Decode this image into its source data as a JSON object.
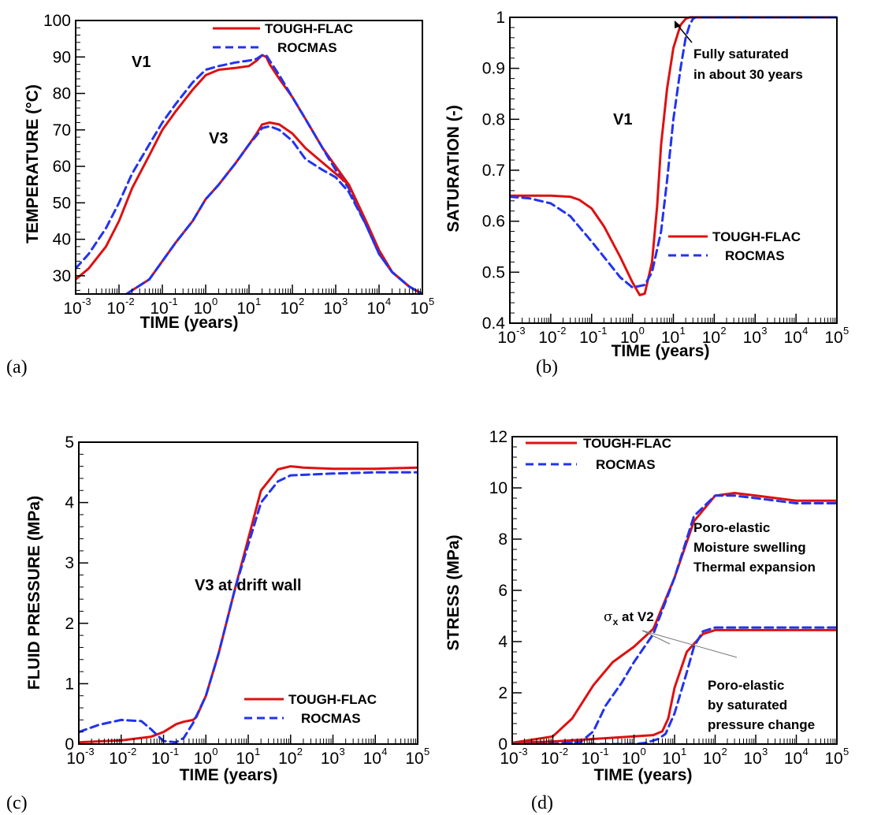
{
  "colors": {
    "tough": "#dd1111",
    "rocmas": "#2233ee",
    "axis": "#000000"
  },
  "chart_data": [
    {
      "type": "line",
      "panel_label": "(a)",
      "xlabel": "TIME (years)",
      "ylabel": "TEMPERATURE (°C)",
      "x_scale": "log",
      "xlim": [
        0.001,
        100000
      ],
      "ylim": [
        25,
        100
      ],
      "yticks": [
        30,
        40,
        50,
        60,
        70,
        80,
        90,
        100
      ],
      "legend": {
        "placement": "top-right",
        "entries": [
          "TOUGH-FLAC",
          "ROCMAS"
        ]
      },
      "annotations": [
        "V1",
        "V3"
      ],
      "series": [
        {
          "name": "TOUGH-FLAC",
          "group": "V1",
          "style": "solid",
          "x": [
            0.001,
            0.002,
            0.005,
            0.01,
            0.02,
            0.05,
            0.1,
            0.2,
            0.5,
            1,
            2,
            5,
            10,
            15,
            20,
            25,
            30,
            50,
            100,
            200,
            500,
            1000,
            2000,
            5000,
            10000,
            20000,
            50000,
            100000
          ],
          "y": [
            29,
            32,
            38,
            45,
            54,
            63,
            70,
            75,
            81,
            85,
            86.5,
            87,
            87.5,
            89,
            90.5,
            90,
            88,
            84,
            79,
            73,
            65,
            60,
            55,
            45,
            37,
            31,
            27,
            25
          ]
        },
        {
          "name": "ROCMAS",
          "group": "V1",
          "style": "dashed",
          "x": [
            0.001,
            0.002,
            0.005,
            0.01,
            0.02,
            0.05,
            0.1,
            0.2,
            0.5,
            1,
            2,
            5,
            10,
            15,
            20,
            25,
            30,
            50,
            100,
            200,
            500,
            1000,
            2000,
            5000,
            10000,
            20000,
            50000,
            100000
          ],
          "y": [
            32,
            36,
            43,
            50,
            58,
            66,
            72,
            77,
            83,
            86.5,
            87.5,
            88.5,
            89,
            89.5,
            90.5,
            90.5,
            89,
            85,
            79,
            73,
            65,
            59,
            54,
            44,
            36,
            31,
            27,
            25
          ]
        },
        {
          "name": "TOUGH-FLAC",
          "group": "V3",
          "style": "solid",
          "x": [
            0.015,
            0.02,
            0.05,
            0.1,
            0.2,
            0.5,
            1,
            2,
            5,
            10,
            15,
            20,
            30,
            50,
            100,
            200,
            500,
            1000,
            2000,
            5000,
            10000,
            20000,
            50000,
            100000
          ],
          "y": [
            25,
            26,
            29,
            34,
            39,
            45,
            51,
            55,
            61,
            66,
            69,
            71.5,
            72,
            71.5,
            69,
            65,
            61,
            58,
            55,
            45,
            37,
            31,
            27,
            25
          ]
        },
        {
          "name": "ROCMAS",
          "group": "V3",
          "style": "dashed",
          "x": [
            0.015,
            0.02,
            0.05,
            0.1,
            0.2,
            0.5,
            1,
            2,
            5,
            10,
            15,
            20,
            30,
            50,
            100,
            200,
            500,
            1000,
            2000,
            5000,
            10000,
            20000,
            50000,
            100000
          ],
          "y": [
            25,
            26,
            29,
            34,
            39,
            45,
            51,
            55,
            61,
            66,
            68.5,
            70.5,
            71,
            70,
            67,
            62,
            59,
            57,
            53,
            44,
            36,
            31,
            27,
            25
          ]
        }
      ]
    },
    {
      "type": "line",
      "panel_label": "(b)",
      "xlabel": "TIME (years)",
      "ylabel": "SATURATION (-)",
      "x_scale": "log",
      "xlim": [
        0.001,
        100000
      ],
      "ylim": [
        0.4,
        1.0
      ],
      "yticks": [
        0.4,
        0.5,
        0.6,
        0.7,
        0.8,
        0.9,
        1
      ],
      "ytick_labels": [
        "0.4",
        "0.5",
        "0.6",
        "0.7",
        "0.8",
        "0.9",
        "1"
      ],
      "legend": {
        "placement": "lower-right",
        "entries": [
          "TOUGH-FLAC",
          "ROCMAS"
        ]
      },
      "annotations": [
        "V1",
        "Fully saturated",
        "in about 30 years"
      ],
      "series": [
        {
          "name": "TOUGH-FLAC",
          "style": "solid",
          "x": [
            0.001,
            0.01,
            0.03,
            0.05,
            0.1,
            0.2,
            0.5,
            1,
            1.5,
            2,
            3,
            4,
            5,
            7,
            10,
            15,
            20,
            25,
            30,
            100000
          ],
          "y": [
            0.65,
            0.65,
            0.648,
            0.642,
            0.625,
            0.59,
            0.53,
            0.48,
            0.455,
            0.458,
            0.52,
            0.63,
            0.75,
            0.86,
            0.94,
            0.985,
            0.997,
            1.0,
            1.0,
            1.0
          ]
        },
        {
          "name": "ROCMAS",
          "style": "dashed",
          "x": [
            0.001,
            0.003,
            0.01,
            0.03,
            0.1,
            0.2,
            0.5,
            1,
            2,
            3,
            5,
            7,
            10,
            15,
            20,
            25,
            30,
            35,
            100000
          ],
          "y": [
            0.648,
            0.645,
            0.635,
            0.61,
            0.56,
            0.53,
            0.49,
            0.47,
            0.475,
            0.5,
            0.58,
            0.68,
            0.8,
            0.9,
            0.96,
            0.985,
            0.997,
            1.0,
            1.0
          ]
        }
      ]
    },
    {
      "type": "line",
      "panel_label": "(c)",
      "xlabel": "TIME (years)",
      "ylabel": "FLUID PRESSURE (MPa)",
      "x_scale": "log",
      "xlim": [
        0.001,
        100000
      ],
      "ylim": [
        0,
        5
      ],
      "yticks": [
        0,
        1,
        2,
        3,
        4,
        5
      ],
      "legend": {
        "placement": "lower-right",
        "entries": [
          "TOUGH-FLAC",
          "ROCMAS"
        ]
      },
      "annotations": [
        "V3 at drift wall"
      ],
      "series": [
        {
          "name": "TOUGH-FLAC",
          "style": "solid",
          "x": [
            0.001,
            0.01,
            0.05,
            0.1,
            0.2,
            0.3,
            0.5,
            0.6,
            1,
            2,
            5,
            10,
            20,
            50,
            100,
            200,
            1000,
            10000,
            100000
          ],
          "y": [
            0.03,
            0.06,
            0.12,
            0.2,
            0.33,
            0.37,
            0.4,
            0.45,
            0.8,
            1.5,
            2.6,
            3.4,
            4.2,
            4.55,
            4.6,
            4.58,
            4.56,
            4.56,
            4.58
          ]
        },
        {
          "name": "ROCMAS",
          "style": "dashed",
          "x": [
            0.001,
            0.003,
            0.01,
            0.03,
            0.05,
            0.1,
            0.2,
            0.3,
            0.5,
            1,
            2,
            5,
            10,
            20,
            50,
            100,
            1000,
            10000,
            100000
          ],
          "y": [
            0.2,
            0.32,
            0.4,
            0.38,
            0.25,
            0.05,
            0.03,
            0.1,
            0.35,
            0.8,
            1.5,
            2.6,
            3.3,
            4.0,
            4.35,
            4.45,
            4.48,
            4.5,
            4.5
          ]
        }
      ]
    },
    {
      "type": "line",
      "panel_label": "(d)",
      "xlabel": "TIME (years)",
      "ylabel": "STRESS (MPa)",
      "x_scale": "log",
      "xlim": [
        0.001,
        100000
      ],
      "ylim": [
        0,
        12
      ],
      "yticks": [
        0,
        2,
        4,
        6,
        8,
        10,
        12
      ],
      "legend": {
        "placement": "top-left",
        "entries": [
          "TOUGH-FLAC",
          "ROCMAS"
        ]
      },
      "annotations": [
        "Poro-elastic",
        "Moisture swelling",
        "Thermal expansion",
        "σx at V2",
        "Poro-elastic",
        "by saturated",
        "pressure change"
      ],
      "series": [
        {
          "name": "TOUGH-FLAC",
          "group": "upper",
          "style": "solid",
          "x": [
            0.001,
            0.01,
            0.03,
            0.1,
            0.3,
            1,
            3,
            10,
            30,
            100,
            300,
            1000,
            10000,
            100000
          ],
          "y": [
            0.05,
            0.3,
            1.0,
            2.3,
            3.2,
            3.8,
            4.5,
            6.5,
            8.7,
            9.7,
            9.8,
            9.7,
            9.5,
            9.5
          ]
        },
        {
          "name": "ROCMAS",
          "group": "upper",
          "style": "dashed",
          "x": [
            0.001,
            0.01,
            0.05,
            0.1,
            0.2,
            0.5,
            1,
            3,
            10,
            30,
            100,
            300,
            1000,
            10000,
            100000
          ],
          "y": [
            0,
            0,
            0.1,
            0.5,
            1.5,
            2.4,
            3.2,
            4.3,
            6.5,
            8.9,
            9.7,
            9.7,
            9.6,
            9.4,
            9.4
          ]
        },
        {
          "name": "TOUGH-FLAC",
          "group": "lower",
          "style": "solid",
          "x": [
            0.001,
            0.01,
            0.1,
            1,
            3,
            5,
            7,
            10,
            20,
            50,
            100,
            1000,
            10000,
            100000
          ],
          "y": [
            0.05,
            0.1,
            0.2,
            0.3,
            0.35,
            0.5,
            1.0,
            2.2,
            3.6,
            4.3,
            4.45,
            4.45,
            4.45,
            4.45
          ]
        },
        {
          "name": "ROCMAS",
          "group": "lower",
          "style": "dashed",
          "x": [
            0.001,
            1,
            2,
            4,
            6,
            10,
            20,
            30,
            50,
            100,
            1000,
            10000,
            100000
          ],
          "y": [
            0,
            0,
            0.05,
            0.2,
            0.4,
            1.2,
            2.8,
            3.8,
            4.4,
            4.55,
            4.55,
            4.55,
            4.55
          ]
        }
      ]
    }
  ]
}
